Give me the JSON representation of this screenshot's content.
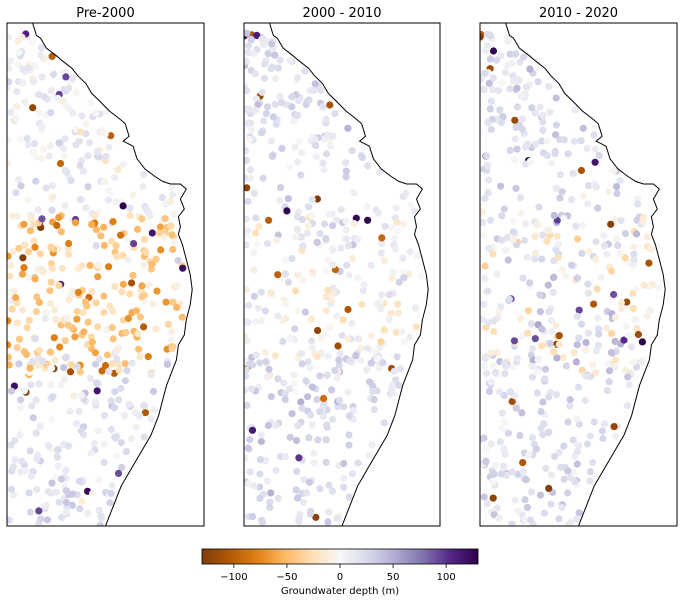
{
  "chart_data": {
    "type": "scatter",
    "panels": [
      {
        "title": "Pre-2000"
      },
      {
        "title": "2000 - 2010"
      },
      {
        "title": "2010 - 2020"
      }
    ],
    "colorbar": {
      "label": "Groundwater depth (m)",
      "range": [
        -130,
        130
      ],
      "ticks": [
        -100,
        -50,
        0,
        50,
        100
      ],
      "tick_labels": [
        "−100",
        "−50",
        "0",
        "50",
        "100"
      ],
      "colormap": "PuOr-reversed",
      "colors": [
        "#7f3b08",
        "#b35806",
        "#e08214",
        "#fdb863",
        "#fee0b6",
        "#f7f7f7",
        "#d8daeb",
        "#b2abd2",
        "#8073ac",
        "#542788",
        "#2d004b"
      ]
    },
    "coastline_color": "#000000",
    "point_groups": [
      {
        "panel": 0,
        "region": "north",
        "count": 170,
        "mean_value": 8,
        "spread": 14
      },
      {
        "panel": 0,
        "region": "central",
        "count": 260,
        "mean_value": -35,
        "spread": 32
      },
      {
        "panel": 0,
        "region": "south",
        "count": 170,
        "mean_value": 18,
        "spread": 16
      },
      {
        "panel": 1,
        "region": "north",
        "count": 160,
        "mean_value": 18,
        "spread": 14
      },
      {
        "panel": 1,
        "region": "central",
        "count": 200,
        "mean_value": 5,
        "spread": 22
      },
      {
        "panel": 1,
        "region": "south",
        "count": 170,
        "mean_value": 22,
        "spread": 16
      },
      {
        "panel": 2,
        "region": "north",
        "count": 160,
        "mean_value": 18,
        "spread": 16
      },
      {
        "panel": 2,
        "region": "central",
        "count": 220,
        "mean_value": 8,
        "spread": 30
      },
      {
        "panel": 2,
        "region": "south",
        "count": 160,
        "mean_value": 22,
        "spread": 18
      }
    ]
  }
}
